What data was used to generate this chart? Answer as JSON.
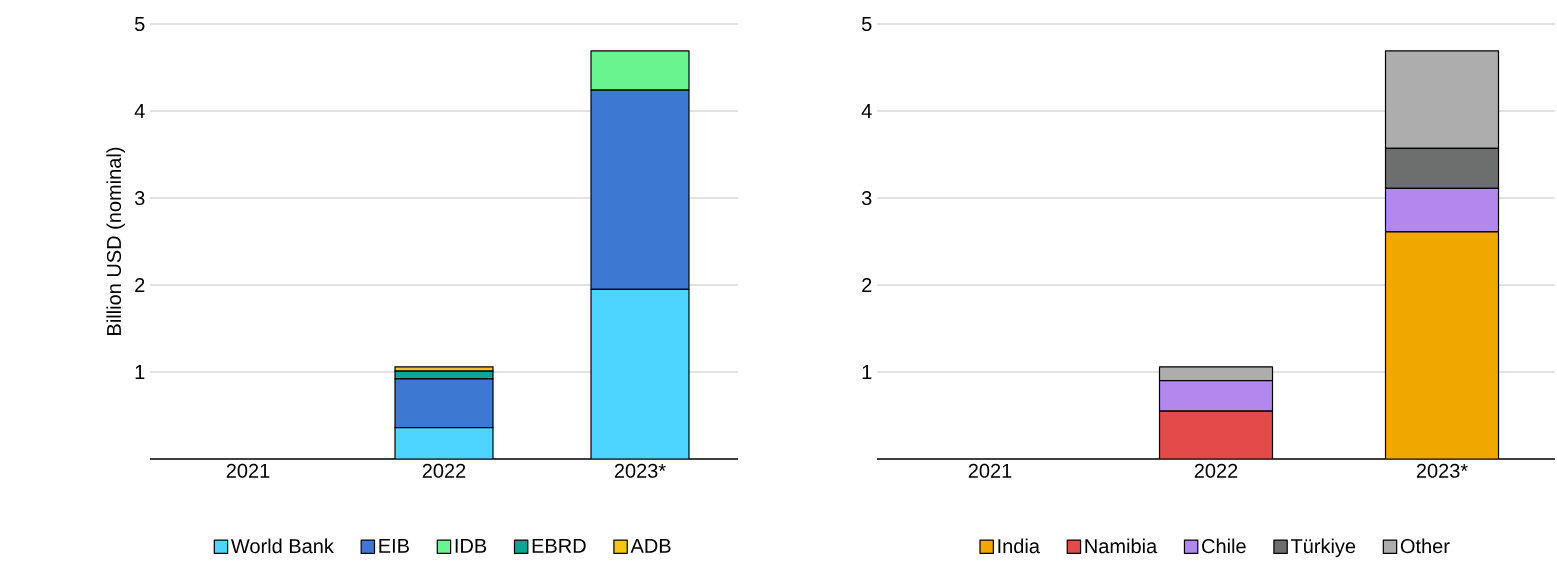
{
  "chart_data": [
    {
      "type": "bar",
      "stacked": true,
      "ylabel": "Billion USD (nominal)",
      "categories": [
        "2021",
        "2022",
        "2023*"
      ],
      "ylim": [
        0,
        5
      ],
      "yticks": [
        1,
        2,
        3,
        4,
        5
      ],
      "grid": "y",
      "legend": "bottom",
      "series": [
        {
          "name": "World Bank",
          "color": "#4dd4ff",
          "values": [
            null,
            0.36,
            1.95
          ]
        },
        {
          "name": "EIB",
          "color": "#3d79d3",
          "values": [
            0,
            0.56,
            2.29
          ]
        },
        {
          "name": "IDB",
          "color": "#69f490",
          "values": [
            0,
            0,
            0.45
          ]
        },
        {
          "name": "EBRD",
          "color": "#0fa596",
          "values": [
            0,
            0.09,
            0
          ]
        },
        {
          "name": "ADB",
          "color": "#f5c518",
          "values": [
            0,
            0.05,
            0
          ]
        }
      ]
    },
    {
      "type": "bar",
      "stacked": true,
      "categories": [
        "2021",
        "2022",
        "2023*"
      ],
      "ylim": [
        0,
        5
      ],
      "yticks": [
        1,
        2,
        3,
        4,
        5
      ],
      "grid": "y",
      "legend": "bottom",
      "series": [
        {
          "name": "India",
          "color": "#f0a800",
          "values": [
            0,
            0,
            2.61
          ]
        },
        {
          "name": "Namibia",
          "color": "#e34a4a",
          "values": [
            0,
            0.55,
            0
          ]
        },
        {
          "name": "Chile",
          "color": "#b388ee",
          "values": [
            0,
            0.35,
            0.5
          ]
        },
        {
          "name": "Türkiye",
          "color": "#6d6f6e",
          "values": [
            0,
            0,
            0.46
          ]
        },
        {
          "name": "Other",
          "color": "#adadad",
          "values": [
            null,
            0.16,
            1.12
          ]
        }
      ]
    }
  ]
}
